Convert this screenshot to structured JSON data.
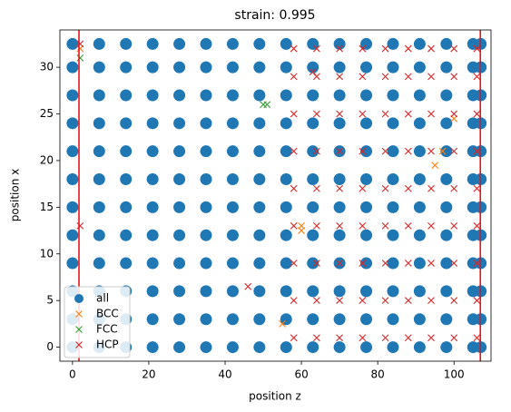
{
  "chart_data": {
    "type": "scatter",
    "title": "strain: 0.995",
    "x_label": "position z",
    "y_label": "position x",
    "xlim": [
      -3.3,
      109.7
    ],
    "ylim": [
      -1.5,
      34
    ],
    "xticks": [
      0,
      20,
      40,
      60,
      80,
      100
    ],
    "yticks": [
      0,
      5,
      10,
      15,
      20,
      25,
      30
    ],
    "grid": false,
    "legend": "lower left",
    "vlines": {
      "values": [
        1.7,
        106.9
      ],
      "color": "#e8141c"
    },
    "series": [
      {
        "name": "all",
        "color": "#1f77b4",
        "marker": "o",
        "x": [
          0,
          7,
          14,
          21,
          28,
          35,
          42,
          49,
          56,
          63,
          70,
          77,
          84,
          91,
          98,
          105,
          107,
          0,
          7,
          14,
          21,
          28,
          35,
          42,
          49,
          56,
          63,
          70,
          77,
          84,
          91,
          98,
          105,
          107,
          0,
          7,
          14,
          21,
          28,
          35,
          42,
          49,
          56,
          63,
          70,
          77,
          84,
          91,
          98,
          105,
          107,
          0,
          7,
          14,
          21,
          28,
          35,
          42,
          49,
          56,
          63,
          70,
          77,
          84,
          91,
          98,
          105,
          107,
          0,
          7,
          14,
          21,
          28,
          35,
          42,
          49,
          56,
          63,
          70,
          77,
          84,
          91,
          98,
          105,
          107,
          0,
          7,
          14,
          21,
          28,
          35,
          42,
          49,
          56,
          63,
          70,
          77,
          84,
          91,
          98,
          105,
          107,
          0,
          7,
          14,
          21,
          28,
          35,
          42,
          49,
          56,
          63,
          70,
          77,
          84,
          91,
          98,
          105,
          107,
          0,
          7,
          14,
          21,
          28,
          35,
          42,
          49,
          56,
          63,
          70,
          77,
          84,
          91,
          98,
          105,
          107,
          0,
          7,
          14,
          21,
          28,
          35,
          42,
          49,
          56,
          63,
          70,
          77,
          84,
          91,
          98,
          105,
          107,
          0,
          7,
          14,
          21,
          28,
          35,
          42,
          49,
          56,
          63,
          70,
          77,
          84,
          91,
          98,
          105,
          107,
          0,
          7,
          14,
          21,
          28,
          35,
          42,
          49,
          56,
          63,
          70,
          77,
          84,
          91,
          98,
          105,
          107,
          0,
          7,
          14,
          21,
          28,
          35,
          42,
          49,
          56,
          63,
          70,
          77,
          84,
          91,
          98,
          105,
          107
        ],
        "y": [
          0,
          0,
          0,
          0,
          0,
          0,
          0,
          0,
          0,
          0,
          0,
          0,
          0,
          0,
          0,
          0,
          0,
          3,
          3,
          3,
          3,
          3,
          3,
          3,
          3,
          3,
          3,
          3,
          3,
          3,
          3,
          3,
          3,
          3,
          6,
          6,
          6,
          6,
          6,
          6,
          6,
          6,
          6,
          6,
          6,
          6,
          6,
          6,
          6,
          6,
          6,
          9,
          9,
          9,
          9,
          9,
          9,
          9,
          9,
          9,
          9,
          9,
          9,
          9,
          9,
          9,
          9,
          9,
          12,
          12,
          12,
          12,
          12,
          12,
          12,
          12,
          12,
          12,
          12,
          12,
          12,
          12,
          12,
          12,
          12,
          15,
          15,
          15,
          15,
          15,
          15,
          15,
          15,
          15,
          15,
          15,
          15,
          15,
          15,
          15,
          15,
          15,
          18,
          18,
          18,
          18,
          18,
          18,
          18,
          18,
          18,
          18,
          18,
          18,
          18,
          18,
          18,
          18,
          18,
          21,
          21,
          21,
          21,
          21,
          21,
          21,
          21,
          21,
          21,
          21,
          21,
          21,
          21,
          21,
          21,
          21,
          24,
          24,
          24,
          24,
          24,
          24,
          24,
          24,
          24,
          24,
          24,
          24,
          24,
          24,
          24,
          24,
          24,
          27,
          27,
          27,
          27,
          27,
          27,
          27,
          27,
          27,
          27,
          27,
          27,
          27,
          27,
          27,
          27,
          27,
          30,
          30,
          30,
          30,
          30,
          30,
          30,
          30,
          30,
          30,
          30,
          30,
          30,
          30,
          30,
          30,
          30,
          32.5,
          32.5,
          32.5,
          32.5,
          32.5,
          32.5,
          32.5,
          32.5,
          32.5,
          32.5,
          32.5,
          32.5,
          32.5,
          32.5,
          32.5,
          32.5,
          32.5
        ]
      },
      {
        "name": "BCC",
        "color": "#ff7f0e",
        "marker": "x",
        "x": [
          55,
          60,
          60,
          97,
          100,
          95,
          2
        ],
        "y": [
          2.5,
          13,
          12.5,
          21,
          24.5,
          19.5,
          32
        ]
      },
      {
        "name": "FCC",
        "color": "#2ca02c",
        "marker": "x",
        "x": [
          2,
          50,
          51
        ],
        "y": [
          31,
          26,
          26
        ]
      },
      {
        "name": "HCP",
        "color": "#d62728",
        "marker": "x",
        "x": [
          58,
          64,
          70,
          76,
          82,
          88,
          94,
          100,
          106,
          58,
          64,
          70,
          76,
          82,
          88,
          94,
          100,
          106,
          58,
          64,
          70,
          76,
          82,
          88,
          94,
          100,
          106,
          58,
          64,
          70,
          76,
          82,
          88,
          94,
          100,
          106,
          58,
          64,
          70,
          76,
          82,
          88,
          94,
          100,
          106,
          58,
          64,
          70,
          76,
          82,
          88,
          94,
          100,
          106,
          58,
          64,
          70,
          76,
          82,
          88,
          94,
          100,
          106,
          58,
          64,
          70,
          76,
          82,
          88,
          94,
          100,
          106,
          58,
          64,
          70,
          76,
          82,
          88,
          94,
          100,
          106,
          2,
          2,
          46,
          63
        ],
        "y": [
          1,
          1,
          1,
          1,
          1,
          1,
          1,
          1,
          1,
          5,
          5,
          5,
          5,
          5,
          5,
          5,
          5,
          5,
          9,
          9,
          9,
          9,
          9,
          9,
          9,
          9,
          9,
          13,
          13,
          13,
          13,
          13,
          13,
          13,
          13,
          13,
          17,
          17,
          17,
          17,
          17,
          17,
          17,
          17,
          17,
          21,
          21,
          21,
          21,
          21,
          21,
          21,
          21,
          21,
          25,
          25,
          25,
          25,
          25,
          25,
          25,
          25,
          25,
          29,
          29,
          29,
          29,
          29,
          29,
          29,
          29,
          29,
          32,
          32,
          32,
          32,
          32,
          32,
          32,
          32,
          32,
          32.5,
          13,
          6.5,
          29.5
        ]
      }
    ]
  }
}
